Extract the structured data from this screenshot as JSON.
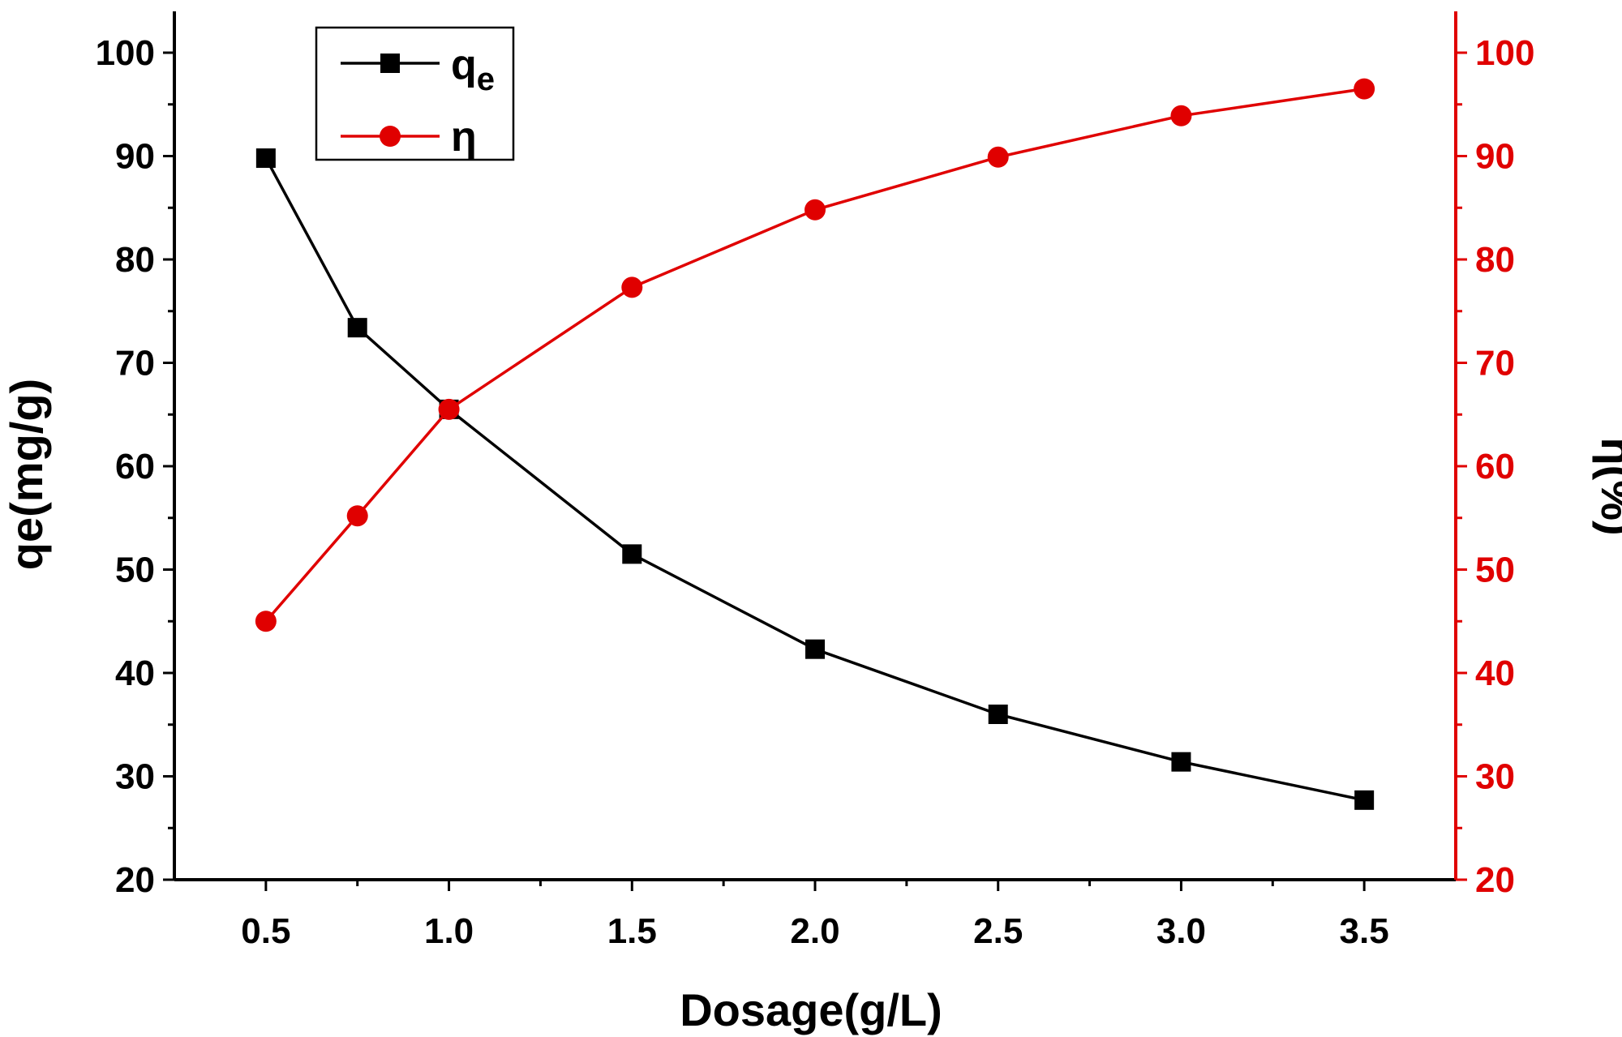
{
  "chart_data": {
    "type": "line",
    "xlabel": "Dosage(g/L)",
    "ylabel_left": "qe(mg/g)",
    "ylabel_right": "η(%)",
    "xlim": [
      0.25,
      3.75
    ],
    "ylim_left": [
      20,
      104
    ],
    "ylim_right": [
      20,
      104
    ],
    "x_ticks": [
      "0.5",
      "1.0",
      "1.5",
      "2.0",
      "2.5",
      "3.0",
      "3.5"
    ],
    "y_ticks_left": [
      "20",
      "30",
      "40",
      "50",
      "60",
      "70",
      "80",
      "90",
      "100"
    ],
    "y_ticks_right": [
      "20",
      "30",
      "40",
      "50",
      "60",
      "70",
      "80",
      "90",
      "100"
    ],
    "grid": false,
    "legend_position": "top-left",
    "series": [
      {
        "name": "qe",
        "axis": "left",
        "color": "#000000",
        "marker": "square",
        "x": [
          0.5,
          0.75,
          1.0,
          1.5,
          2.0,
          2.5,
          3.0,
          3.5
        ],
        "values": [
          89.8,
          73.4,
          65.5,
          51.5,
          42.3,
          36.0,
          31.4,
          27.7
        ]
      },
      {
        "name": "η",
        "axis": "right",
        "color": "#e00000",
        "marker": "circle",
        "x": [
          0.5,
          0.75,
          1.0,
          1.5,
          2.0,
          2.5,
          3.0,
          3.5
        ],
        "values": [
          45.0,
          55.2,
          65.5,
          77.3,
          84.8,
          89.9,
          93.9,
          96.5
        ]
      }
    ]
  },
  "legend": {
    "qe_main": "q",
    "qe_sub": "e",
    "eta": "η"
  }
}
